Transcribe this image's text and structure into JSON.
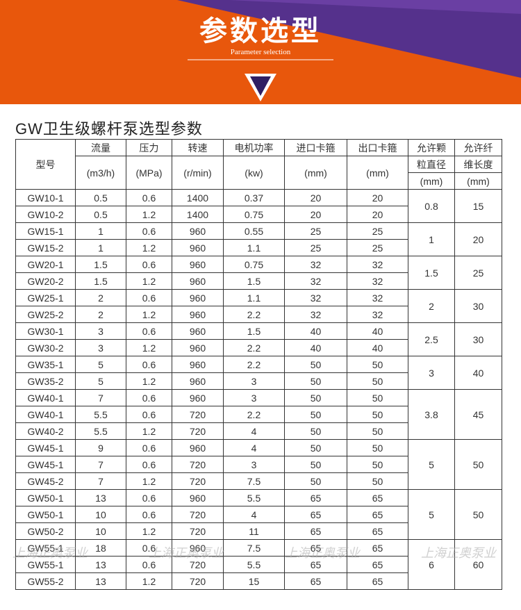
{
  "header": {
    "title": "参数选型",
    "subtitle": "Parameter selection"
  },
  "heading": "GW卫生级螺杆泵选型参数",
  "watermark": "上海正奥泵业",
  "table": {
    "columns": [
      [
        "型号"
      ],
      [
        "流量",
        "(m3/h)"
      ],
      [
        "压力",
        "(MPa)"
      ],
      [
        "转速",
        "(r/min)"
      ],
      [
        "电机功率",
        "(kw)"
      ],
      [
        "进口卡箍",
        "(mm)"
      ],
      [
        "出口卡箍",
        "(mm)"
      ],
      [
        "允许颗",
        "粒直径",
        "(mm)"
      ],
      [
        "允许纤",
        "维长度",
        "(mm)"
      ]
    ],
    "rows": [
      [
        "GW10-1",
        0.5,
        0.6,
        1400,
        0.37,
        20,
        20
      ],
      [
        "GW10-2",
        0.5,
        1.2,
        1400,
        0.75,
        20,
        20
      ],
      [
        "GW15-1",
        1,
        0.6,
        960,
        0.55,
        25,
        25
      ],
      [
        "GW15-2",
        1,
        1.2,
        960,
        1.1,
        25,
        25
      ],
      [
        "GW20-1",
        1.5,
        0.6,
        960,
        0.75,
        32,
        32
      ],
      [
        "GW20-2",
        1.5,
        1.2,
        960,
        1.5,
        32,
        32
      ],
      [
        "GW25-1",
        2,
        0.6,
        960,
        1.1,
        32,
        32
      ],
      [
        "GW25-2",
        2,
        1.2,
        960,
        2.2,
        32,
        32
      ],
      [
        "GW30-1",
        3,
        0.6,
        960,
        1.5,
        40,
        40
      ],
      [
        "GW30-2",
        3,
        1.2,
        960,
        2.2,
        40,
        40
      ],
      [
        "GW35-1",
        5,
        0.6,
        960,
        2.2,
        50,
        50
      ],
      [
        "GW35-2",
        5,
        1.2,
        960,
        3,
        50,
        50
      ],
      [
        "GW40-1",
        7,
        0.6,
        960,
        3,
        50,
        50
      ],
      [
        "GW40-1",
        5.5,
        0.6,
        720,
        2.2,
        50,
        50
      ],
      [
        "GW40-2",
        5.5,
        1.2,
        720,
        4,
        50,
        50
      ],
      [
        "GW45-1",
        9,
        0.6,
        960,
        4,
        50,
        50
      ],
      [
        "GW45-1",
        7,
        0.6,
        720,
        3,
        50,
        50
      ],
      [
        "GW45-2",
        7,
        1.2,
        720,
        7.5,
        50,
        50
      ],
      [
        "GW50-1",
        13,
        0.6,
        960,
        5.5,
        65,
        65
      ],
      [
        "GW50-1",
        10,
        0.6,
        720,
        4,
        65,
        65
      ],
      [
        "GW50-2",
        10,
        1.2,
        720,
        11,
        65,
        65
      ],
      [
        "GW55-1",
        18,
        0.6,
        960,
        7.5,
        65,
        65
      ],
      [
        "GW55-1",
        13,
        0.6,
        720,
        5.5,
        65,
        65
      ],
      [
        "GW55-2",
        13,
        1.2,
        720,
        15,
        65,
        65
      ]
    ],
    "groups": [
      {
        "rows": 2,
        "particle": 0.8,
        "fiber": 15
      },
      {
        "rows": 2,
        "particle": 1,
        "fiber": 20
      },
      {
        "rows": 2,
        "particle": 1.5,
        "fiber": 25
      },
      {
        "rows": 2,
        "particle": 2,
        "fiber": 30
      },
      {
        "rows": 2,
        "particle": 2.5,
        "fiber": 30
      },
      {
        "rows": 2,
        "particle": 3,
        "fiber": 40
      },
      {
        "rows": 3,
        "particle": 3.8,
        "fiber": 45
      },
      {
        "rows": 3,
        "particle": 5,
        "fiber": 50
      },
      {
        "rows": 3,
        "particle": 5,
        "fiber": 50
      },
      {
        "rows": 3,
        "particle": 6,
        "fiber": 60
      }
    ]
  }
}
